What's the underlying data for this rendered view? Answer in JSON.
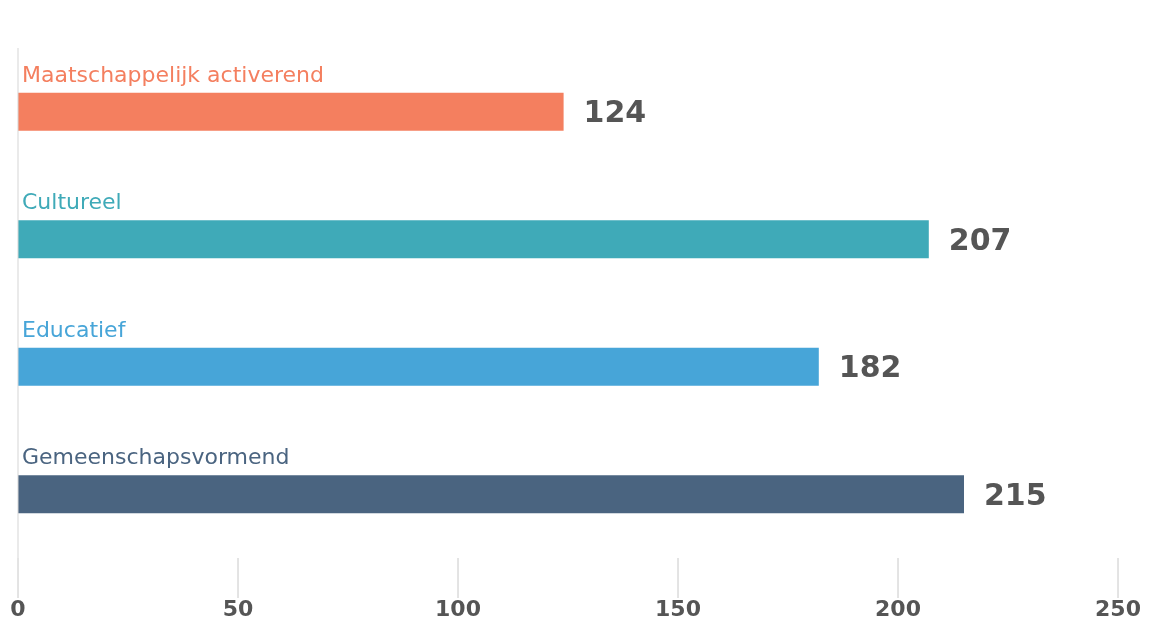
{
  "chart_data": {
    "type": "bar",
    "orientation": "horizontal",
    "categories": [
      "Maatschappelijk activerend",
      "Cultureel",
      "Educatief",
      "Gemeenschapsvormend"
    ],
    "values": [
      124,
      207,
      182,
      215
    ],
    "colors": [
      "#f47f5f",
      "#3faab8",
      "#47a5d8",
      "#4a6480"
    ],
    "xlim": [
      0,
      250
    ],
    "xticks": [
      0,
      50,
      100,
      150,
      200,
      250
    ],
    "data_labels": true,
    "grid": false,
    "legend": false
  }
}
